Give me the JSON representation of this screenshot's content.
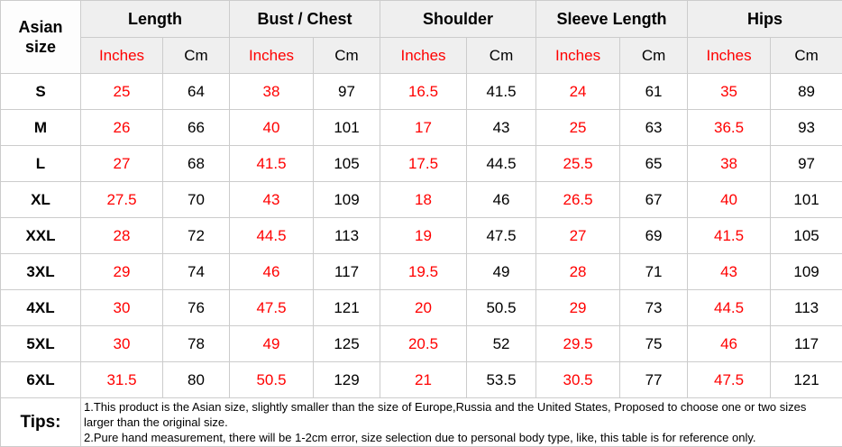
{
  "colors": {
    "accent_red": "#ff0000",
    "header_bg": "#efefef",
    "border": "#cccccc"
  },
  "chart_data": {
    "type": "table",
    "corner_label": "Asian size",
    "column_groups": [
      "Length",
      "Bust / Chest",
      "Shoulder",
      "Sleeve Length",
      "Hips"
    ],
    "unit_headers": [
      "Inches",
      "Cm"
    ],
    "rows": [
      {
        "size": "S",
        "values": [
          "25",
          "64",
          "38",
          "97",
          "16.5",
          "41.5",
          "24",
          "61",
          "35",
          "89"
        ]
      },
      {
        "size": "M",
        "values": [
          "26",
          "66",
          "40",
          "101",
          "17",
          "43",
          "25",
          "63",
          "36.5",
          "93"
        ]
      },
      {
        "size": "L",
        "values": [
          "27",
          "68",
          "41.5",
          "105",
          "17.5",
          "44.5",
          "25.5",
          "65",
          "38",
          "97"
        ]
      },
      {
        "size": "XL",
        "values": [
          "27.5",
          "70",
          "43",
          "109",
          "18",
          "46",
          "26.5",
          "67",
          "40",
          "101"
        ]
      },
      {
        "size": "XXL",
        "values": [
          "28",
          "72",
          "44.5",
          "113",
          "19",
          "47.5",
          "27",
          "69",
          "41.5",
          "105"
        ]
      },
      {
        "size": "3XL",
        "values": [
          "29",
          "74",
          "46",
          "117",
          "19.5",
          "49",
          "28",
          "71",
          "43",
          "109"
        ]
      },
      {
        "size": "4XL",
        "values": [
          "30",
          "76",
          "47.5",
          "121",
          "20",
          "50.5",
          "29",
          "73",
          "44.5",
          "113"
        ]
      },
      {
        "size": "5XL",
        "values": [
          "30",
          "78",
          "49",
          "125",
          "20.5",
          "52",
          "29.5",
          "75",
          "46",
          "117"
        ]
      },
      {
        "size": "6XL",
        "values": [
          "31.5",
          "80",
          "50.5",
          "129",
          "21",
          "53.5",
          "30.5",
          "77",
          "47.5",
          "121"
        ]
      }
    ],
    "tips": {
      "label": "Tips:",
      "lines": [
        "1.This product is the Asian size, slightly smaller than the size of Europe,Russia and the United States, Proposed to choose one or two sizes larger than the original size.",
        "2.Pure hand measurement, there will be 1-2cm error, size selection due to personal body type, like, this table is for reference only."
      ]
    }
  }
}
